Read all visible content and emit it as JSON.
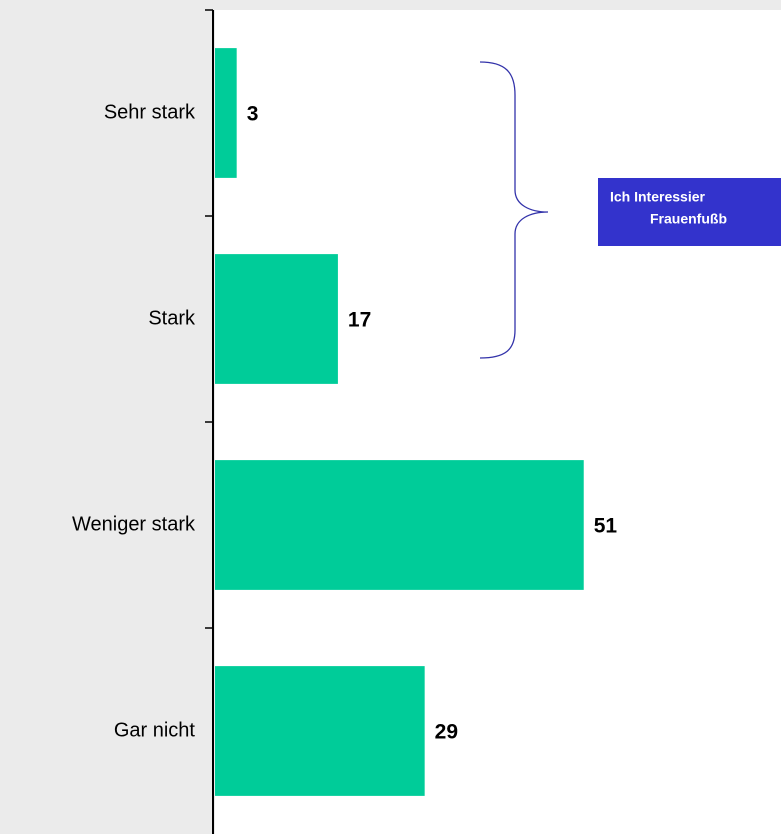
{
  "chart_data": {
    "type": "bar",
    "orientation": "horizontal",
    "categories": [
      "Sehr stark",
      "Stark",
      "Weniger stark",
      "Gar nicht"
    ],
    "values": [
      3,
      17,
      51,
      29
    ],
    "color": "#00cc99",
    "annotation": [
      "Ich Interessier",
      "Frauenfußb"
    ],
    "annotation_color": "#3333cc",
    "brace_color": "#3333aa"
  }
}
